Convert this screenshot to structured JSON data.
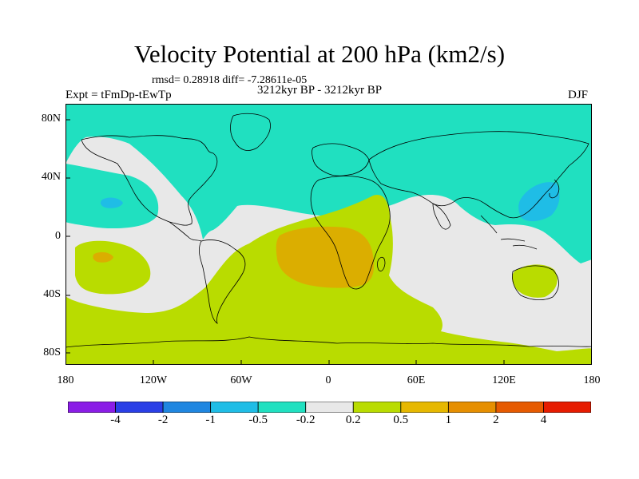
{
  "title": "Velocity Potential at 200 hPa (km2/s)",
  "stats": "rmsd= 0.28918 diff= -7.28611e-05",
  "experiment": "Expt = tFmDp-tEwTp",
  "period": "3212kyr BP - 3212kyr BP",
  "season": "DJF",
  "y_axis_labels": [
    "80N",
    "40N",
    "0",
    "40S",
    "80S"
  ],
  "x_axis_labels": [
    "180",
    "120W",
    "60W",
    "0",
    "60E",
    "120E",
    "180"
  ],
  "colorbar": {
    "labels": [
      "-4",
      "-2",
      "-1",
      "-0.5",
      "-0.2",
      "0.2",
      "0.5",
      "1",
      "2",
      "4"
    ],
    "colors": [
      "#8a1de6",
      "#2a3fe6",
      "#1f86e0",
      "#1fbde6",
      "#20e0c0",
      "#e8e8e8",
      "#b9dc00",
      "#e6b800",
      "#e68f00",
      "#e65a00",
      "#e61c00"
    ]
  },
  "palette": {
    "neutral": "#e8e8e8",
    "pos_small": "#b9dc00",
    "pos_mid": "#dbae00",
    "pos_high": "#e08a00",
    "neg_small": "#20e0c0",
    "neg_mid": "#1fbde6",
    "coast": "#000000"
  }
}
